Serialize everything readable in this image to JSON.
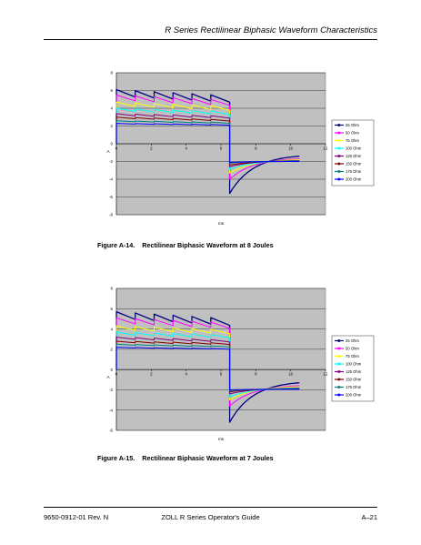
{
  "header": {
    "title": "R Series Rectilinear Biphasic Waveform Characteristics"
  },
  "figures": [
    {
      "number": "Figure A-14.",
      "caption": "Rectilinear Biphasic Waveform at 8 Joules"
    },
    {
      "number": "Figure A-15.",
      "caption": "Rectilinear Biphasic Waveform at 7 Joules"
    }
  ],
  "footer": {
    "doc_number": "9650-0912-01 Rev. N",
    "guide_title": "ZOLL R Series Operator's Guide",
    "page": "A–21"
  },
  "chart_data": [
    {
      "type": "line",
      "title": "",
      "xlabel": "ms",
      "ylabel": "A",
      "xlim": [
        0,
        12
      ],
      "ylim": [
        -8,
        8
      ],
      "x_ticks": [
        0,
        2,
        4,
        6,
        8,
        10,
        12
      ],
      "y_ticks": [
        -8,
        -6,
        -4,
        -2,
        0,
        2,
        4,
        6,
        8
      ],
      "grid": "horizontal",
      "legend_position": "right",
      "plot_background": "#c0c0c0",
      "phase1_end_ms": 6.5,
      "phase2_end_ms": 10.5,
      "ripple_peaks": 6,
      "series": [
        {
          "name": "25 Ohm",
          "color": "#000080",
          "phase1_start": 6.1,
          "phase1_end": 5.4,
          "phase2_start": -5.6,
          "phase2_end": -1.4
        },
        {
          "name": "50 Ohm",
          "color": "#ff00ff",
          "phase1_start": 5.5,
          "phase1_end": 4.9,
          "phase2_start": -4.0,
          "phase2_end": -1.7
        },
        {
          "name": "75 Ohm",
          "color": "#ffff00",
          "phase1_start": 4.7,
          "phase1_end": 4.2,
          "phase2_start": -3.3,
          "phase2_end": -1.8
        },
        {
          "name": "100 Ohm",
          "color": "#00ffff",
          "phase1_start": 4.0,
          "phase1_end": 3.6,
          "phase2_start": -2.9,
          "phase2_end": -1.9
        },
        {
          "name": "125 Ohm",
          "color": "#800080",
          "phase1_start": 3.4,
          "phase1_end": 3.1,
          "phase2_start": -2.6,
          "phase2_end": -1.9
        },
        {
          "name": "150 Ohm",
          "color": "#800000",
          "phase1_start": 3.0,
          "phase1_end": 2.7,
          "phase2_start": -2.4,
          "phase2_end": -1.95
        },
        {
          "name": "175 Ohm",
          "color": "#008080",
          "phase1_start": 2.6,
          "phase1_end": 2.4,
          "phase2_start": -2.2,
          "phase2_end": -1.95
        },
        {
          "name": "200 Ohm",
          "color": "#0000ff",
          "phase1_start": 2.3,
          "phase1_end": 2.15,
          "phase2_start": -2.1,
          "phase2_end": -2.0
        }
      ]
    },
    {
      "type": "line",
      "title": "",
      "xlabel": "ms",
      "ylabel": "A",
      "xlim": [
        0,
        12
      ],
      "ylim": [
        -6,
        8
      ],
      "x_ticks": [
        0,
        2,
        4,
        6,
        8,
        10,
        12
      ],
      "y_ticks": [
        -6,
        -4,
        -2,
        0,
        2,
        4,
        6,
        8
      ],
      "grid": "horizontal",
      "legend_position": "right",
      "plot_background": "#c0c0c0",
      "phase1_end_ms": 6.5,
      "phase2_end_ms": 10.5,
      "ripple_peaks": 6,
      "series": [
        {
          "name": "25 Ohm",
          "color": "#000080",
          "phase1_start": 5.7,
          "phase1_end": 5.0,
          "phase2_start": -5.2,
          "phase2_end": -1.3
        },
        {
          "name": "50 Ohm",
          "color": "#ff00ff",
          "phase1_start": 5.1,
          "phase1_end": 4.6,
          "phase2_start": -3.6,
          "phase2_end": -1.6
        },
        {
          "name": "75 Ohm",
          "color": "#ffff00",
          "phase1_start": 4.3,
          "phase1_end": 3.9,
          "phase2_start": -3.0,
          "phase2_end": -1.7
        },
        {
          "name": "100 Ohm",
          "color": "#00ffff",
          "phase1_start": 3.7,
          "phase1_end": 3.4,
          "phase2_start": -2.7,
          "phase2_end": -1.8
        },
        {
          "name": "125 Ohm",
          "color": "#800080",
          "phase1_start": 3.2,
          "phase1_end": 2.9,
          "phase2_start": -2.4,
          "phase2_end": -1.85
        },
        {
          "name": "150 Ohm",
          "color": "#800000",
          "phase1_start": 2.8,
          "phase1_end": 2.6,
          "phase2_start": -2.2,
          "phase2_end": -1.9
        },
        {
          "name": "175 Ohm",
          "color": "#008080",
          "phase1_start": 2.5,
          "phase1_end": 2.3,
          "phase2_start": -2.1,
          "phase2_end": -1.9
        },
        {
          "name": "200 Ohm",
          "color": "#0000ff",
          "phase1_start": 2.2,
          "phase1_end": 2.05,
          "phase2_start": -2.0,
          "phase2_end": -1.95
        }
      ]
    }
  ]
}
